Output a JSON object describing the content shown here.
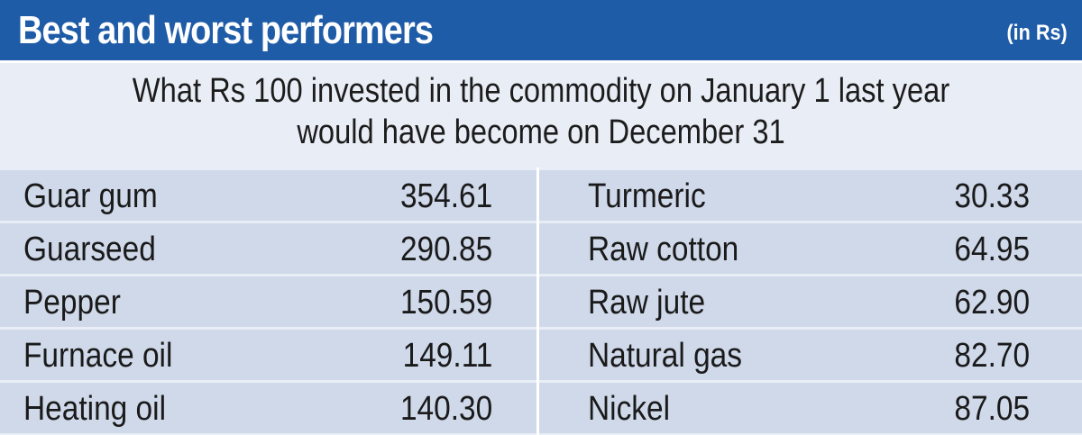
{
  "header": {
    "title": "Best and worst performers",
    "unit": "(in Rs)"
  },
  "subtitle": {
    "line1": "What Rs 100 invested in the commodity on January 1 last year",
    "line2": "would have become on December 31"
  },
  "colors": {
    "header_bg": "#1f5ca8",
    "row_dark": "#cfd9ea",
    "row_light": "#e9eef6"
  },
  "chart_data": {
    "type": "table",
    "title": "Best and worst performers",
    "best": [
      {
        "name": "Guar gum",
        "value": "354.61"
      },
      {
        "name": "Guarseed",
        "value": "290.85"
      },
      {
        "name": "Pepper",
        "value": "150.59"
      },
      {
        "name": "Furnace oil",
        "value": "149.11"
      },
      {
        "name": "Heating oil",
        "value": "140.30"
      }
    ],
    "worst": [
      {
        "name": "Turmeric",
        "value": "30.33"
      },
      {
        "name": "Raw cotton",
        "value": "64.95"
      },
      {
        "name": "Raw jute",
        "value": "62.90"
      },
      {
        "name": "Natural gas",
        "value": "82.70"
      },
      {
        "name": "Nickel",
        "value": "87.05"
      }
    ]
  }
}
